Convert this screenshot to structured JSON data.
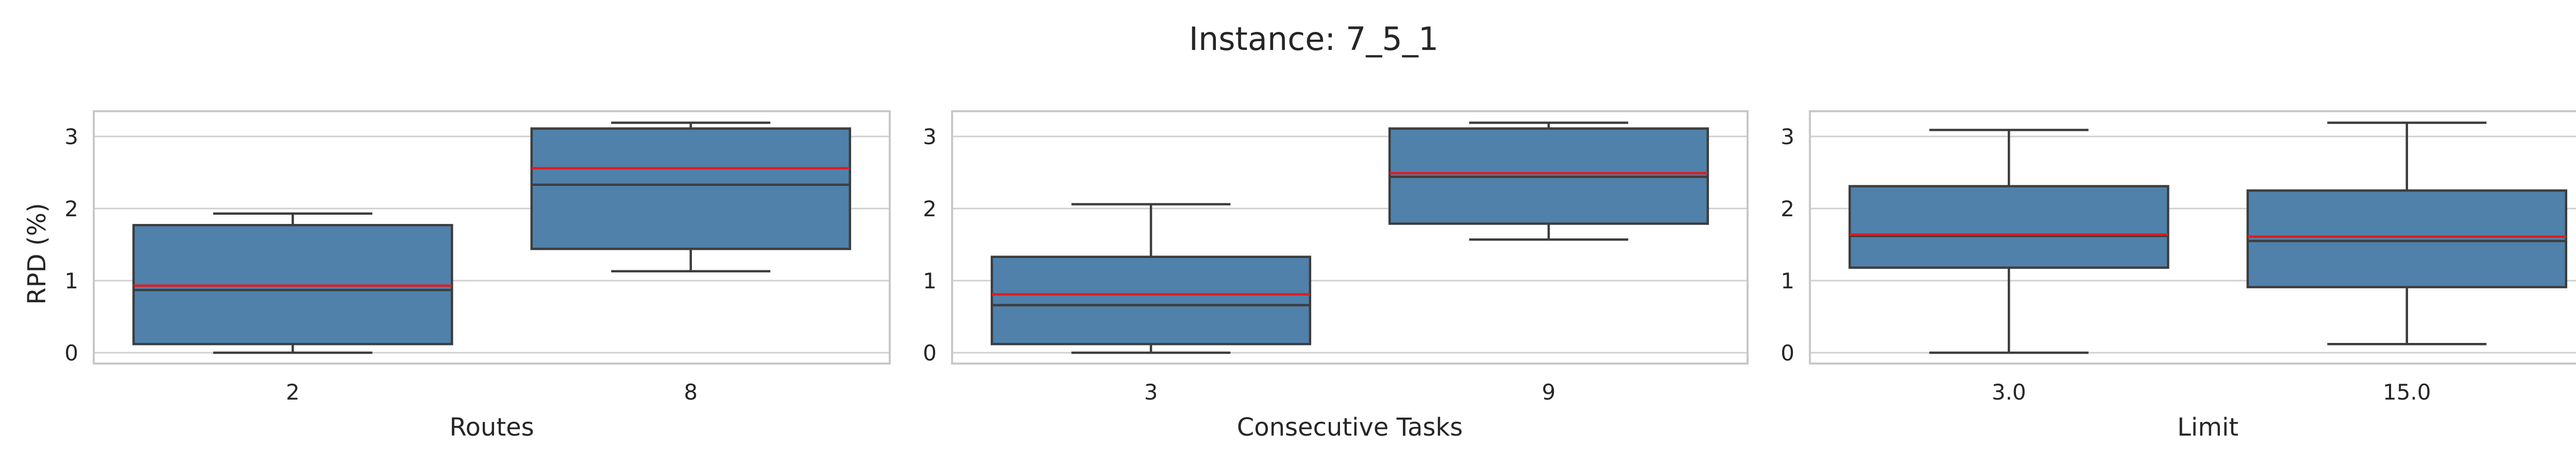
{
  "figure": {
    "title": "Instance: 7_5_1",
    "ylabel": "RPD (%)"
  },
  "style": {
    "box_fill": "#4f81ab",
    "box_edge": "#3d3d3d",
    "mean_line": "#e31a1c",
    "grid": "#d0d0d0",
    "frame": "#c8c8c8",
    "background": "#ffffff"
  },
  "chart_data": [
    {
      "type": "box",
      "xlabel": "Routes",
      "ylim": [
        -0.15,
        3.35
      ],
      "yticks": [
        0,
        1,
        2,
        3
      ],
      "grid": true,
      "categories": [
        "2",
        "8"
      ],
      "boxes": [
        {
          "whisker_low": 0.0,
          "q1": 0.12,
          "median": 0.87,
          "mean": 0.93,
          "q3": 1.77,
          "whisker_high": 1.93
        },
        {
          "whisker_low": 1.13,
          "q1": 1.44,
          "median": 2.33,
          "mean": 2.56,
          "q3": 3.11,
          "whisker_high": 3.19
        }
      ]
    },
    {
      "type": "box",
      "xlabel": "Consecutive Tasks",
      "ylim": [
        -0.15,
        3.35
      ],
      "yticks": [
        0,
        1,
        2,
        3
      ],
      "grid": true,
      "categories": [
        "3",
        "9"
      ],
      "boxes": [
        {
          "whisker_low": 0.0,
          "q1": 0.12,
          "median": 0.66,
          "mean": 0.81,
          "q3": 1.33,
          "whisker_high": 2.06
        },
        {
          "whisker_low": 1.57,
          "q1": 1.79,
          "median": 2.44,
          "mean": 2.49,
          "q3": 3.11,
          "whisker_high": 3.19
        }
      ]
    },
    {
      "type": "box",
      "xlabel": "Limit",
      "ylim": [
        -0.15,
        3.35
      ],
      "yticks": [
        0,
        1,
        2,
        3
      ],
      "grid": true,
      "categories": [
        "3.0",
        "15.0"
      ],
      "boxes": [
        {
          "whisker_low": 0.0,
          "q1": 1.18,
          "median": 1.62,
          "mean": 1.64,
          "q3": 2.31,
          "whisker_high": 3.09
        },
        {
          "whisker_low": 0.12,
          "q1": 0.91,
          "median": 1.55,
          "mean": 1.61,
          "q3": 2.25,
          "whisker_high": 3.19
        }
      ]
    }
  ]
}
